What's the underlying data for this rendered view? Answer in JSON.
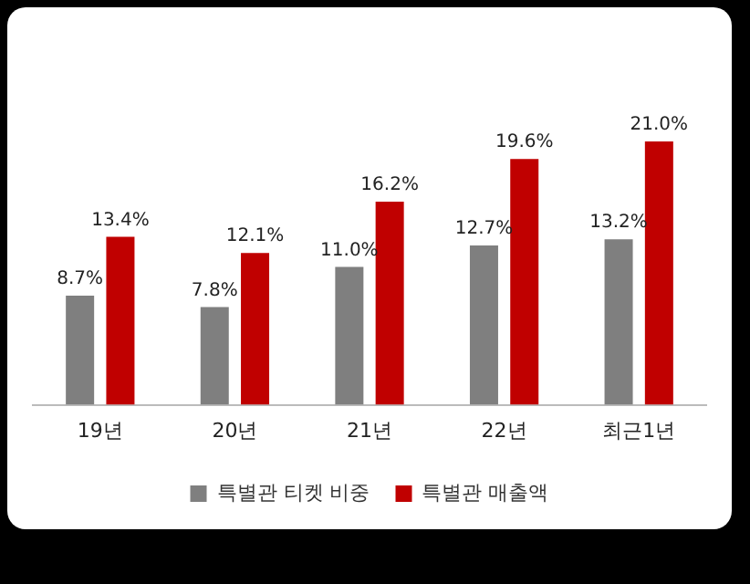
{
  "chart_data": {
    "type": "bar",
    "categories": [
      "19년",
      "20년",
      "21년",
      "22년",
      "최근1년"
    ],
    "series": [
      {
        "name": "특별관 티켓 비중",
        "color": "#7f7f7f",
        "values": [
          8.7,
          7.8,
          11.0,
          12.7,
          13.2
        ],
        "value_labels": [
          "8.7%",
          "7.8%",
          "11.0%",
          "12.7%",
          "13.2%"
        ]
      },
      {
        "name": "특별관 매출액",
        "color": "#c00000",
        "values": [
          13.4,
          12.1,
          16.2,
          19.6,
          21.0
        ],
        "value_labels": [
          "13.4%",
          "12.1%",
          "16.2%",
          "19.6%",
          "21.0%"
        ]
      }
    ],
    "grid": false,
    "legend": "bottom"
  }
}
